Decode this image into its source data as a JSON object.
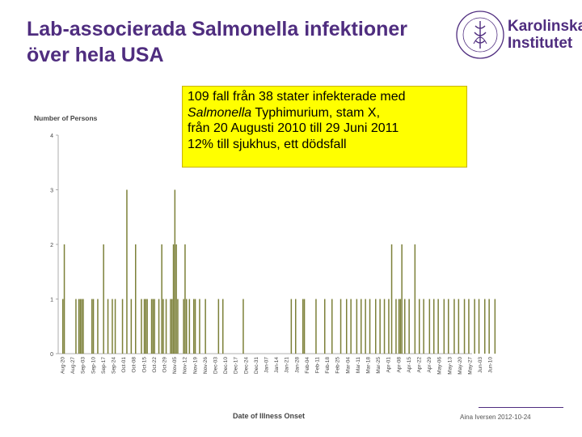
{
  "slide": {
    "title_line1": "Lab-associerada Salmonella infektioner",
    "title_line2": "över hela USA",
    "footer": "Aina Iversen 2012-10-24"
  },
  "logo": {
    "line1": "Karolinska",
    "line2": "Institutet",
    "seal_text": "KAROLINSKA INSTITUTET ANNO 1810"
  },
  "callout": {
    "line1": "109 fall från 38 stater infekterade med",
    "line2_italic": "Salmonella",
    "line2_rest": " Typhimurium, stam X,",
    "line3": "från 20 Augusti 2010 till 29 Juni 2011",
    "line4": "12% till sjukhus, ett dödsfall"
  },
  "colors": {
    "title": "#4f2d7f",
    "bar": "#7c8038",
    "callout_bg": "#ffff00"
  },
  "chart_data": {
    "type": "bar",
    "ylabel": "Number of Persons",
    "xlabel": "Date of Illness Onset",
    "ylim": [
      0,
      4
    ],
    "yticks": [
      0,
      1,
      2,
      3,
      4
    ],
    "grid": false,
    "tick_labels": [
      "Aug-20",
      "Aug-27",
      "Sep-03",
      "Sep-10",
      "Sep-17",
      "Sep-24",
      "Oct-01",
      "Oct-08",
      "Oct-15",
      "Oct-22",
      "Oct-29",
      "Nov-05",
      "Nov-12",
      "Nov-19",
      "Nov-26",
      "Dec-03",
      "Dec-10",
      "Dec-17",
      "Dec-24",
      "Dec-31",
      "Jan-07",
      "Jan-14",
      "Jan-21",
      "Jan-28",
      "Feb-04",
      "Feb-11",
      "Feb-18",
      "Feb-25",
      "Mar-04",
      "Mar-11",
      "Mar-18",
      "Mar-25",
      "Apr-01",
      "Apr-08",
      "Apr-15",
      "Apr-22",
      "Apr-29",
      "May-06",
      "May-13",
      "May-20",
      "May-27",
      "Jun-03",
      "Jun-10"
    ],
    "bars": [
      {
        "x": "2010-08-20",
        "y": 1
      },
      {
        "x": "2010-08-21",
        "y": 2
      },
      {
        "x": "2010-08-29",
        "y": 1
      },
      {
        "x": "2010-08-31",
        "y": 1
      },
      {
        "x": "2010-09-01",
        "y": 1
      },
      {
        "x": "2010-09-02",
        "y": 1
      },
      {
        "x": "2010-09-03",
        "y": 1
      },
      {
        "x": "2010-09-09",
        "y": 1
      },
      {
        "x": "2010-09-10",
        "y": 1
      },
      {
        "x": "2010-09-13",
        "y": 1
      },
      {
        "x": "2010-09-17",
        "y": 2
      },
      {
        "x": "2010-09-20",
        "y": 1
      },
      {
        "x": "2010-09-23",
        "y": 1
      },
      {
        "x": "2010-09-25",
        "y": 1
      },
      {
        "x": "2010-09-30",
        "y": 1
      },
      {
        "x": "2010-10-03",
        "y": 3
      },
      {
        "x": "2010-10-06",
        "y": 1
      },
      {
        "x": "2010-10-09",
        "y": 2
      },
      {
        "x": "2010-10-13",
        "y": 1
      },
      {
        "x": "2010-10-15",
        "y": 1
      },
      {
        "x": "2010-10-16",
        "y": 1
      },
      {
        "x": "2010-10-17",
        "y": 1
      },
      {
        "x": "2010-10-20",
        "y": 1
      },
      {
        "x": "2010-10-21",
        "y": 1
      },
      {
        "x": "2010-10-22",
        "y": 1
      },
      {
        "x": "2010-10-25",
        "y": 1
      },
      {
        "x": "2010-10-27",
        "y": 2
      },
      {
        "x": "2010-10-28",
        "y": 1
      },
      {
        "x": "2010-10-30",
        "y": 1
      },
      {
        "x": "2010-11-02",
        "y": 1
      },
      {
        "x": "2010-11-03",
        "y": 1
      },
      {
        "x": "2010-11-04",
        "y": 2
      },
      {
        "x": "2010-11-05",
        "y": 3
      },
      {
        "x": "2010-11-06",
        "y": 2
      },
      {
        "x": "2010-11-07",
        "y": 1
      },
      {
        "x": "2010-11-11",
        "y": 1
      },
      {
        "x": "2010-11-12",
        "y": 2
      },
      {
        "x": "2010-11-13",
        "y": 1
      },
      {
        "x": "2010-11-15",
        "y": 1
      },
      {
        "x": "2010-11-18",
        "y": 1
      },
      {
        "x": "2010-11-19",
        "y": 1
      },
      {
        "x": "2010-11-22",
        "y": 1
      },
      {
        "x": "2010-11-26",
        "y": 1
      },
      {
        "x": "2010-12-05",
        "y": 1
      },
      {
        "x": "2010-12-08",
        "y": 1
      },
      {
        "x": "2010-12-22",
        "y": 1
      },
      {
        "x": "2011-01-24",
        "y": 1
      },
      {
        "x": "2011-01-27",
        "y": 1
      },
      {
        "x": "2011-02-01",
        "y": 1
      },
      {
        "x": "2011-02-02",
        "y": 1
      },
      {
        "x": "2011-02-10",
        "y": 1
      },
      {
        "x": "2011-02-16",
        "y": 1
      },
      {
        "x": "2011-02-21",
        "y": 1
      },
      {
        "x": "2011-02-27",
        "y": 1
      },
      {
        "x": "2011-03-03",
        "y": 1
      },
      {
        "x": "2011-03-06",
        "y": 1
      },
      {
        "x": "2011-03-10",
        "y": 1
      },
      {
        "x": "2011-03-13",
        "y": 1
      },
      {
        "x": "2011-03-16",
        "y": 1
      },
      {
        "x": "2011-03-19",
        "y": 1
      },
      {
        "x": "2011-03-23",
        "y": 1
      },
      {
        "x": "2011-03-26",
        "y": 1
      },
      {
        "x": "2011-03-29",
        "y": 1
      },
      {
        "x": "2011-04-01",
        "y": 1
      },
      {
        "x": "2011-04-03",
        "y": 2
      },
      {
        "x": "2011-04-06",
        "y": 1
      },
      {
        "x": "2011-04-08",
        "y": 1
      },
      {
        "x": "2011-04-09",
        "y": 1
      },
      {
        "x": "2011-04-10",
        "y": 2
      },
      {
        "x": "2011-04-12",
        "y": 1
      },
      {
        "x": "2011-04-15",
        "y": 1
      },
      {
        "x": "2011-04-19",
        "y": 2
      },
      {
        "x": "2011-04-22",
        "y": 1
      },
      {
        "x": "2011-04-25",
        "y": 1
      },
      {
        "x": "2011-04-29",
        "y": 1
      },
      {
        "x": "2011-05-02",
        "y": 1
      },
      {
        "x": "2011-05-05",
        "y": 1
      },
      {
        "x": "2011-05-09",
        "y": 1
      },
      {
        "x": "2011-05-12",
        "y": 1
      },
      {
        "x": "2011-05-16",
        "y": 1
      },
      {
        "x": "2011-05-19",
        "y": 1
      },
      {
        "x": "2011-05-23",
        "y": 1
      },
      {
        "x": "2011-05-26",
        "y": 1
      },
      {
        "x": "2011-05-30",
        "y": 1
      },
      {
        "x": "2011-06-02",
        "y": 1
      },
      {
        "x": "2011-06-06",
        "y": 1
      },
      {
        "x": "2011-06-09",
        "y": 1
      },
      {
        "x": "2011-06-13",
        "y": 1
      }
    ]
  }
}
